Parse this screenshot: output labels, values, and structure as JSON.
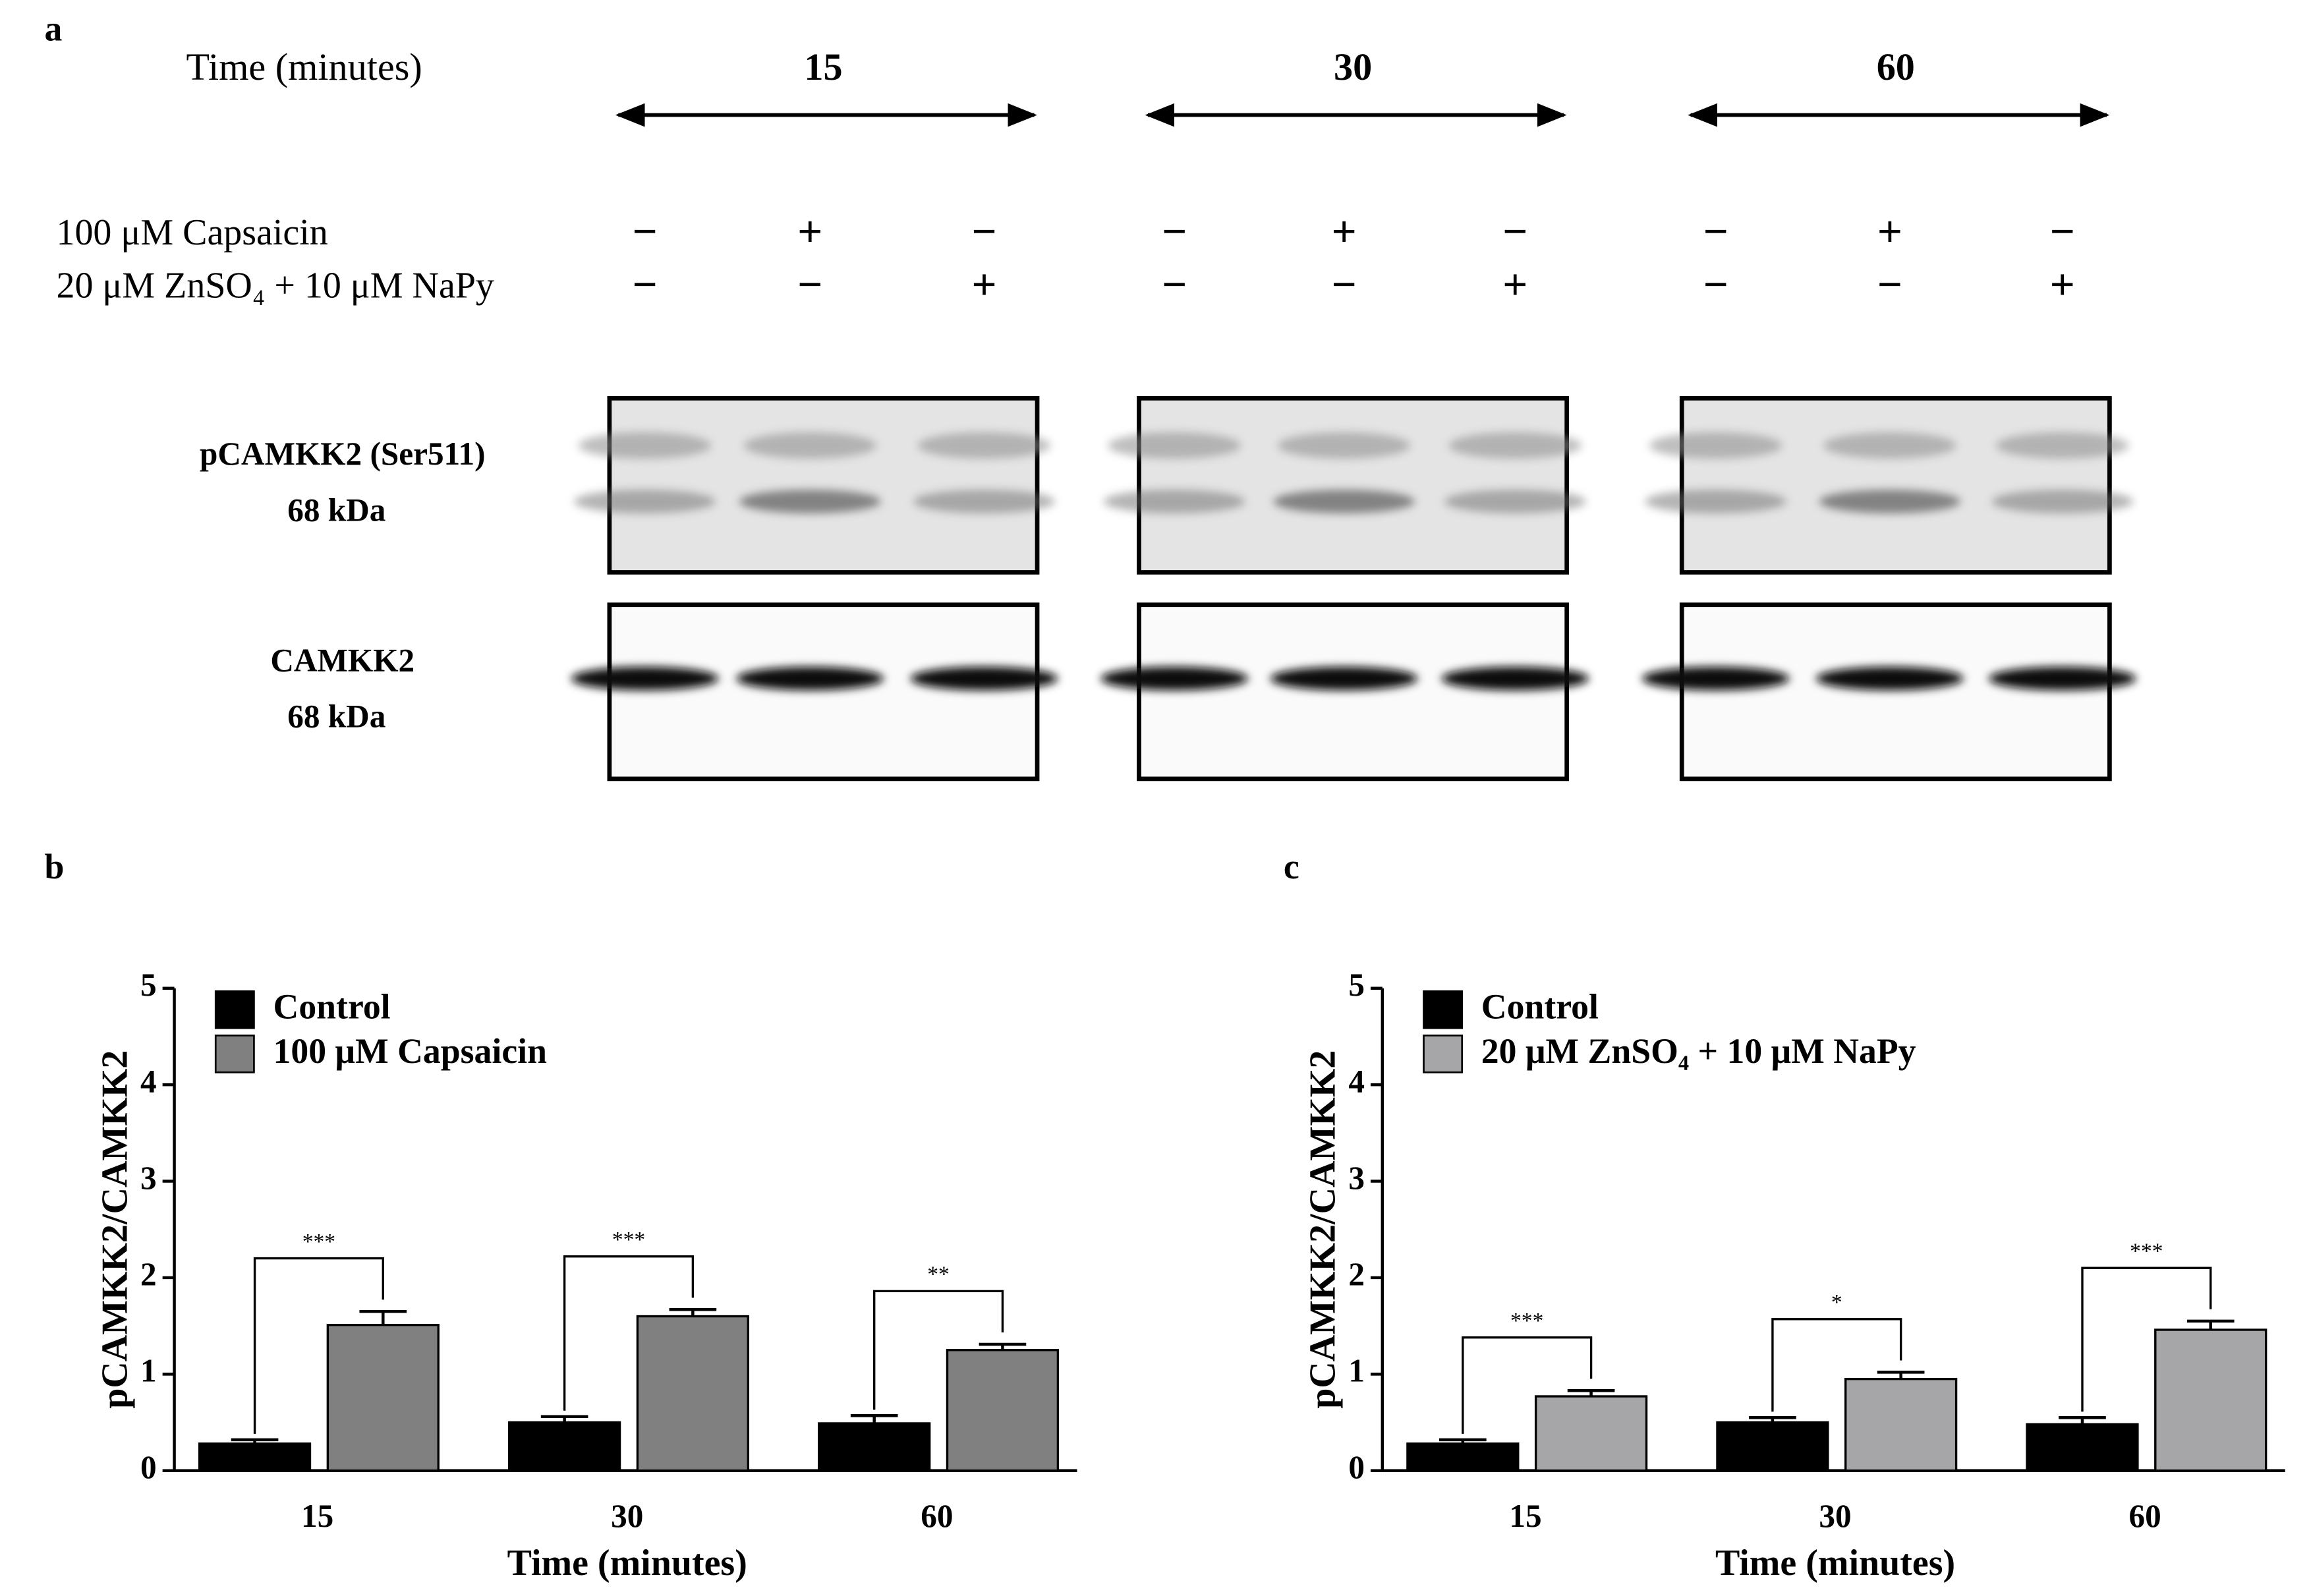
{
  "panel_labels": [
    "a",
    "b",
    "c"
  ],
  "blot": {
    "time_label": "Time (minutes)",
    "times": [
      "15",
      "30",
      "60"
    ],
    "treatments": [
      {
        "label": "100 μM Capsaicin",
        "signs": [
          "−",
          "+",
          "−",
          "−",
          "+",
          "−",
          "−",
          "+",
          "−"
        ]
      },
      {
        "label": "20  μM ZnSO₄ + 10 μM NaPy",
        "signs": [
          "−",
          "−",
          "+",
          "−",
          "−",
          "+",
          "−",
          "−",
          "+"
        ]
      }
    ],
    "proteins": [
      {
        "name": "pCAMKK2 (Ser511)",
        "size": "68 kDa"
      },
      {
        "name": "CAMKK2",
        "size": "68 kDa"
      }
    ]
  },
  "chart_data": [
    {
      "type": "bar",
      "y_label": "pCAMKK2/CAMKK2",
      "x_label": "Time (minutes)",
      "categories": [
        "15",
        "30",
        "60"
      ],
      "series": [
        {
          "name": "Control",
          "color": "#000000",
          "values": [
            0.28,
            0.5,
            0.49
          ],
          "errors": [
            0.04,
            0.06,
            0.08
          ]
        },
        {
          "name": "100 μM Capsaicin",
          "color": "#808080",
          "values": [
            1.51,
            1.6,
            1.25
          ],
          "errors": [
            0.14,
            0.07,
            0.06
          ]
        }
      ],
      "significance": [
        "***",
        "***",
        "**"
      ],
      "ylim": [
        0,
        5
      ],
      "yticks": [
        0,
        1,
        2,
        3,
        4,
        5
      ],
      "legend": "upper left"
    },
    {
      "type": "bar",
      "y_label": "pCAMKK2/CAMKK2",
      "x_label": "Time (minutes)",
      "categories": [
        "15",
        "30",
        "60"
      ],
      "series": [
        {
          "name": "Control",
          "color": "#000000",
          "values": [
            0.28,
            0.5,
            0.48
          ],
          "errors": [
            0.04,
            0.05,
            0.07
          ]
        },
        {
          "name": "20 μM ZnSO₄ + 10  μM NaPy",
          "color": "#a6a6a8",
          "values": [
            0.77,
            0.95,
            1.46
          ],
          "errors": [
            0.06,
            0.07,
            0.09
          ]
        }
      ],
      "significance": [
        "***",
        "*",
        "***"
      ],
      "ylim": [
        0,
        5
      ],
      "yticks": [
        0,
        1,
        2,
        3,
        4,
        5
      ],
      "legend": "upper left"
    }
  ]
}
